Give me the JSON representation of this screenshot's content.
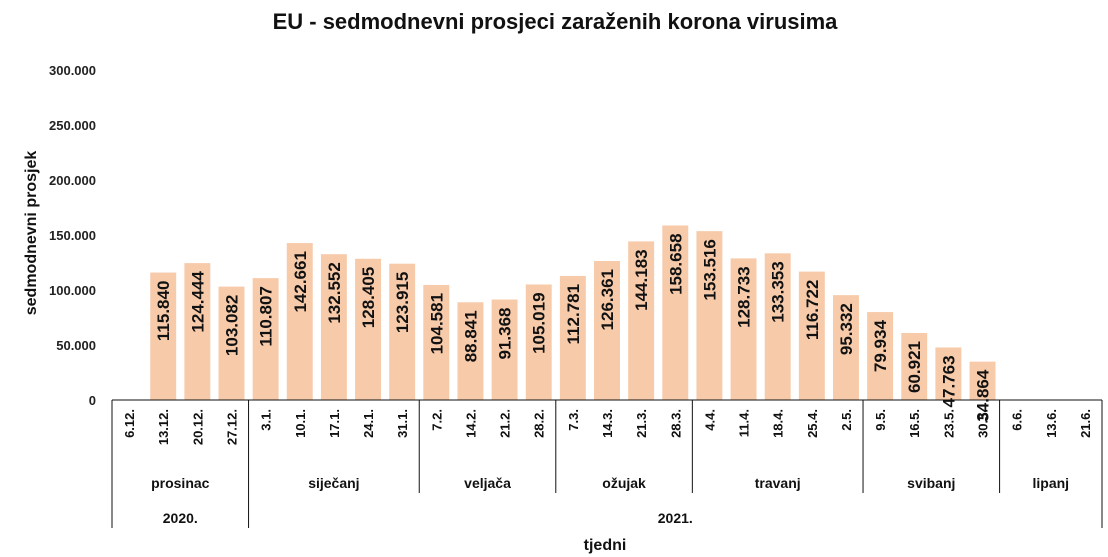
{
  "chart_data": {
    "type": "bar",
    "title": "EU - sedmodnevni prosjeci zaraženih korona virusima",
    "ylabel": "sedmodnevni prosjek",
    "xlabel": "tjedni",
    "ylim": [
      0,
      300000
    ],
    "yticks": [
      0,
      50000,
      100000,
      150000,
      200000,
      250000,
      300000
    ],
    "ytick_labels": [
      "0",
      "50.000",
      "100.000",
      "150.000",
      "200.000",
      "250.000",
      "300.000"
    ],
    "grid": false,
    "bar_color": "#f7cbaa",
    "categories": [
      "6.12.",
      "13.12.",
      "20.12.",
      "27.12.",
      "3.1.",
      "10.1.",
      "17.1.",
      "24.1.",
      "31.1.",
      "7.2.",
      "14.2.",
      "21.2.",
      "28.2.",
      "7.3.",
      "14.3.",
      "21.3.",
      "28.3.",
      "4.4.",
      "11.4.",
      "18.4.",
      "25.4.",
      "2.5.",
      "9.5.",
      "16.5.",
      "23.5.",
      "30.5.",
      "6.6.",
      "13.6.",
      "21.6."
    ],
    "values": [
      null,
      115840,
      124444,
      103082,
      110807,
      142661,
      132552,
      128405,
      123915,
      104581,
      88841,
      91368,
      105019,
      112781,
      126361,
      144183,
      158658,
      153516,
      128733,
      133353,
      116722,
      95332,
      79934,
      60921,
      47763,
      34864,
      null,
      null,
      null
    ],
    "value_labels": [
      "",
      "115.840",
      "124.444",
      "103.082",
      "110.807",
      "142.661",
      "132.552",
      "128.405",
      "123.915",
      "104.581",
      "88.841",
      "91.368",
      "105.019",
      "112.781",
      "126.361",
      "144.183",
      "158.658",
      "153.516",
      "128.733",
      "133.353",
      "116.722",
      "95.332",
      "79.934",
      "60.921",
      "47.763",
      "34.864",
      "",
      "",
      ""
    ],
    "months": [
      {
        "label": "prosinac",
        "start": 0,
        "count": 4
      },
      {
        "label": "siječanj",
        "start": 4,
        "count": 5
      },
      {
        "label": "veljača",
        "start": 9,
        "count": 4
      },
      {
        "label": "ožujak",
        "start": 13,
        "count": 4
      },
      {
        "label": "travanj",
        "start": 17,
        "count": 5
      },
      {
        "label": "svibanj",
        "start": 22,
        "count": 4
      },
      {
        "label": "lipanj",
        "start": 26,
        "count": 3
      }
    ],
    "years": [
      {
        "label": "2020.",
        "start": 0,
        "count": 4
      },
      {
        "label": "2021.",
        "start": 4,
        "count": 25
      }
    ]
  }
}
